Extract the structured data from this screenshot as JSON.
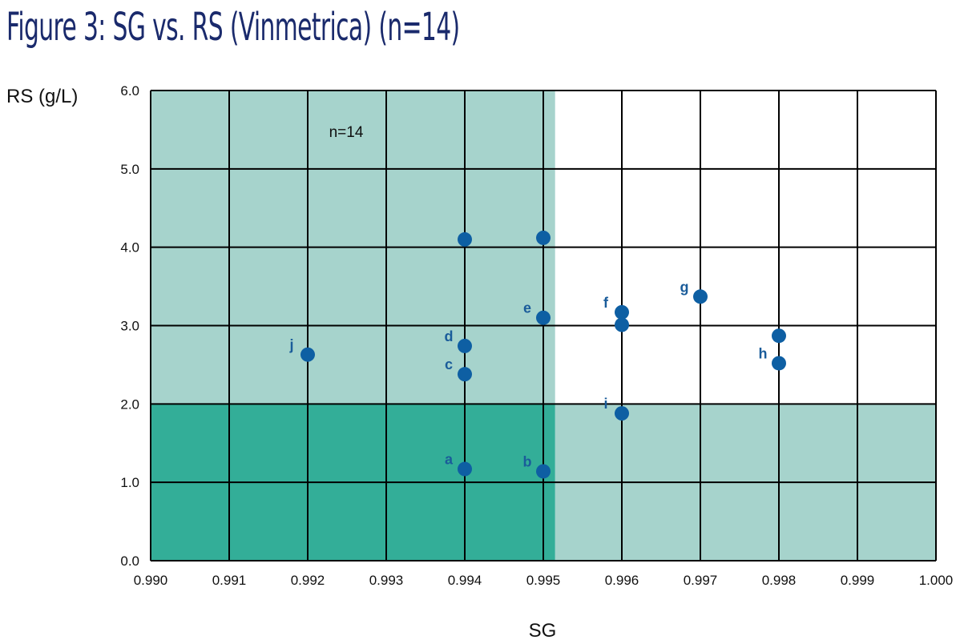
{
  "title": "Figure 3: SG vs. RS (Vinmetrica) (n=14)",
  "chart_data": {
    "type": "scatter",
    "title": "Figure 3: SG vs. RS (Vinmetrica) (n=14)",
    "xlabel": "SG",
    "ylabel": "RS (g/L)",
    "xlim": [
      0.99,
      1.0
    ],
    "ylim": [
      0.0,
      6.0
    ],
    "x_ticks": [
      "0.990",
      "0.991",
      "0.992",
      "0.993",
      "0.994",
      "0.995",
      "0.996",
      "0.997",
      "0.998",
      "0.999",
      "1.000"
    ],
    "y_ticks": [
      "0.0",
      "1.0",
      "2.0",
      "3.0",
      "4.0",
      "5.0",
      "6.0"
    ],
    "grid": true,
    "annotation": "n=14",
    "regions": [
      {
        "x_range": [
          0.99,
          0.99515
        ],
        "y_range": [
          2.0,
          6.0
        ],
        "color": "#a6d3cc"
      },
      {
        "x_range": [
          0.99515,
          1.0
        ],
        "y_range": [
          0.0,
          2.0
        ],
        "color": "#a6d3cc"
      },
      {
        "x_range": [
          0.99,
          0.99515
        ],
        "y_range": [
          0.0,
          2.0
        ],
        "color": "#33ae98"
      }
    ],
    "point_color": "#0e5fa3",
    "points": [
      {
        "label": "a",
        "x": 0.994,
        "y": 1.17
      },
      {
        "label": "b",
        "x": 0.995,
        "y": 1.14
      },
      {
        "label": "c",
        "x": 0.994,
        "y": 2.38
      },
      {
        "label": "d",
        "x": 0.994,
        "y": 2.74
      },
      {
        "label": "e",
        "x": 0.995,
        "y": 3.1
      },
      {
        "label": "f",
        "x": 0.996,
        "y": 3.17
      },
      {
        "label": "g",
        "x": 0.997,
        "y": 3.37
      },
      {
        "label": "h",
        "x": 0.998,
        "y": 2.52
      },
      {
        "label": "i",
        "x": 0.996,
        "y": 1.88
      },
      {
        "label": "j",
        "x": 0.992,
        "y": 2.63
      },
      {
        "label": "",
        "x": 0.994,
        "y": 4.1
      },
      {
        "label": "",
        "x": 0.995,
        "y": 4.12
      },
      {
        "label": "",
        "x": 0.996,
        "y": 3.01
      },
      {
        "label": "",
        "x": 0.998,
        "y": 2.87
      }
    ]
  }
}
